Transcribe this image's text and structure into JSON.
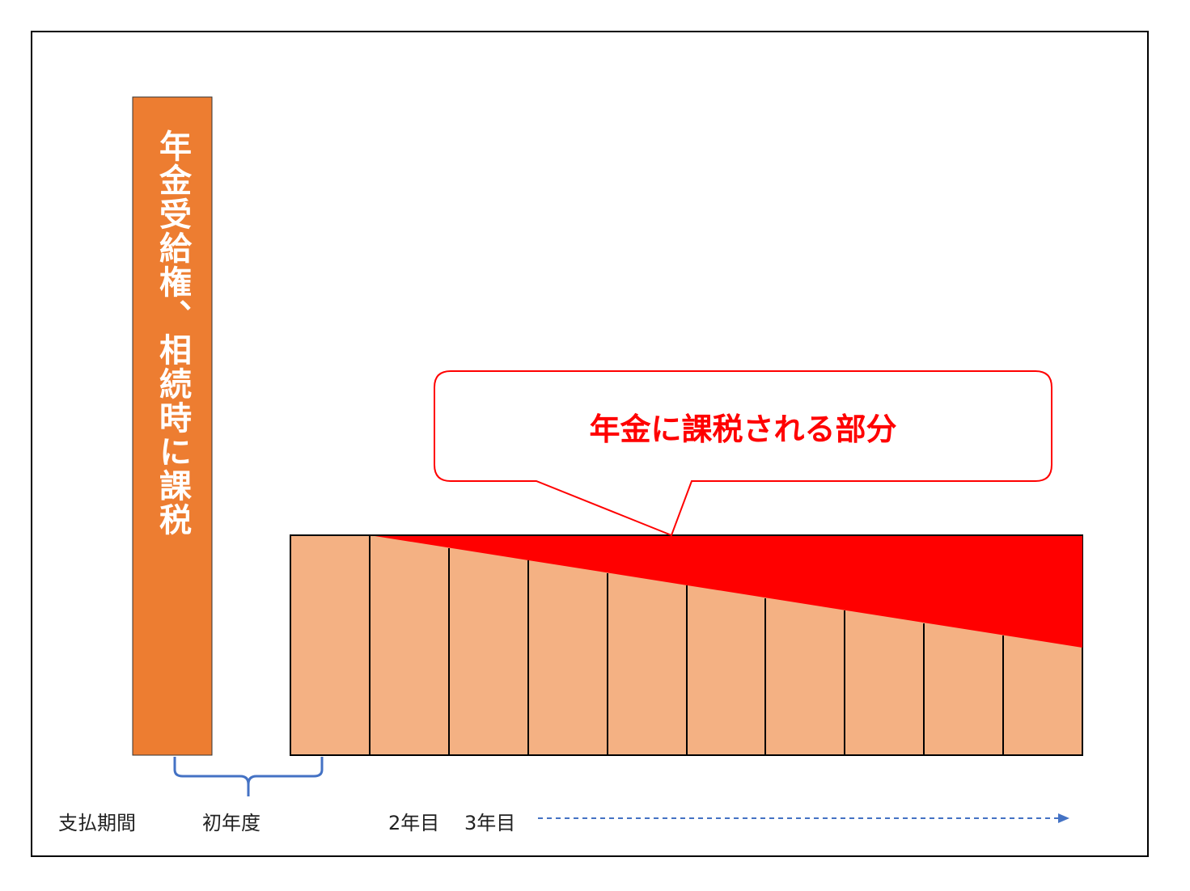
{
  "bar_label": "年金受給権、相続時に課税",
  "callout": "年金に課税される部分",
  "timeline": {
    "period": "支払期間",
    "first_year": "初年度",
    "second_year": "2年目",
    "third_year": "3年目"
  }
}
